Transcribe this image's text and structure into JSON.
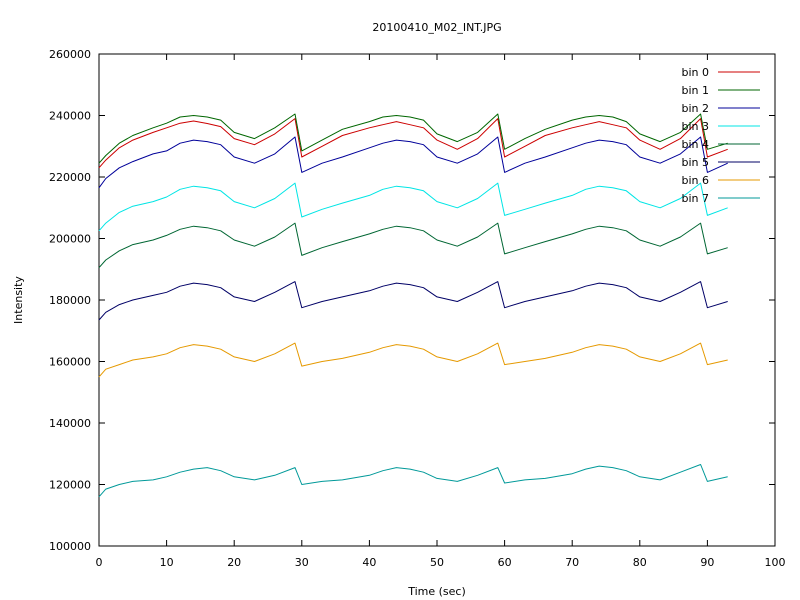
{
  "chart_data": {
    "type": "line",
    "title": "20100410_M02_INT.JPG",
    "xlabel": "Time (sec)",
    "ylabel": "Intensity",
    "xlim": [
      0,
      100
    ],
    "ylim": [
      100000,
      260000
    ],
    "xticks": [
      0,
      10,
      20,
      30,
      40,
      50,
      60,
      70,
      80,
      90,
      100
    ],
    "yticks": [
      100000,
      120000,
      140000,
      160000,
      180000,
      200000,
      220000,
      240000,
      260000
    ],
    "grid": false,
    "legend_position": "top-right",
    "x": [
      0,
      1,
      3,
      5,
      8,
      10,
      12,
      14,
      16,
      18,
      20,
      23,
      26,
      29,
      30,
      33,
      36,
      40,
      42,
      44,
      46,
      48,
      50,
      53,
      56,
      59,
      60,
      63,
      66,
      70,
      72,
      74,
      76,
      78,
      80,
      83,
      86,
      89,
      90,
      93
    ],
    "series": [
      {
        "name": "bin 0",
        "color": "#cc0000",
        "values": [
          223000,
          225500,
          229500,
          232000,
          234500,
          236000,
          237500,
          238200,
          237400,
          236400,
          232500,
          230500,
          234000,
          239000,
          226500,
          230000,
          233500,
          236000,
          237000,
          238000,
          237000,
          236000,
          232000,
          229000,
          232500,
          239000,
          226500,
          230000,
          233500,
          236000,
          237000,
          238000,
          237000,
          236000,
          232000,
          229000,
          232500,
          239000,
          226500,
          229000
        ]
      },
      {
        "name": "bin 1",
        "color": "#006600",
        "values": [
          224500,
          227000,
          231000,
          233500,
          236000,
          237500,
          239500,
          240000,
          239500,
          238500,
          234500,
          232500,
          236000,
          240500,
          228500,
          232000,
          235500,
          238000,
          239500,
          240000,
          239500,
          238500,
          234000,
          231500,
          234500,
          240500,
          229000,
          232500,
          235500,
          238500,
          239500,
          240000,
          239500,
          238000,
          234000,
          231500,
          234500,
          240500,
          229000,
          231000
        ]
      },
      {
        "name": "bin 2",
        "color": "#000099",
        "values": [
          216500,
          219500,
          223000,
          225000,
          227500,
          228500,
          231000,
          232000,
          231500,
          230500,
          226500,
          224500,
          227500,
          233000,
          221500,
          224500,
          226500,
          229500,
          231000,
          232000,
          231500,
          230500,
          226500,
          224500,
          227500,
          233000,
          221500,
          224500,
          226500,
          229500,
          231000,
          232000,
          231500,
          230500,
          226500,
          224500,
          227500,
          233000,
          221500,
          224500
        ]
      },
      {
        "name": "bin 3",
        "color": "#00e5e5",
        "values": [
          202500,
          205000,
          208500,
          210500,
          212000,
          213500,
          216000,
          217000,
          216500,
          215500,
          212000,
          210000,
          213000,
          218000,
          207000,
          209500,
          211500,
          214000,
          216000,
          217000,
          216500,
          215500,
          212000,
          210000,
          213000,
          218000,
          207500,
          209500,
          211500,
          214000,
          216000,
          217000,
          216500,
          215500,
          212000,
          210000,
          213000,
          218000,
          207500,
          210000
        ]
      },
      {
        "name": "bin 4",
        "color": "#006633",
        "values": [
          190500,
          193000,
          196000,
          198000,
          199500,
          201000,
          203000,
          204000,
          203500,
          202500,
          199500,
          197500,
          200500,
          205000,
          194500,
          197000,
          199000,
          201500,
          203000,
          204000,
          203500,
          202500,
          199500,
          197500,
          200500,
          205000,
          195000,
          197000,
          199000,
          201500,
          203000,
          204000,
          203500,
          202500,
          199500,
          197500,
          200500,
          205000,
          195000,
          197000
        ]
      },
      {
        "name": "bin 5",
        "color": "#000066",
        "values": [
          173500,
          176000,
          178500,
          180000,
          181500,
          182500,
          184500,
          185500,
          185000,
          184000,
          181000,
          179500,
          182500,
          186000,
          177500,
          179500,
          181000,
          183000,
          184500,
          185500,
          185000,
          184000,
          181000,
          179500,
          182500,
          186000,
          177500,
          179500,
          181000,
          183000,
          184500,
          185500,
          185000,
          184000,
          181000,
          179500,
          182500,
          186000,
          177500,
          179500
        ]
      },
      {
        "name": "bin 6",
        "color": "#e59900",
        "values": [
          155000,
          157500,
          159000,
          160500,
          161500,
          162500,
          164500,
          165500,
          165000,
          164000,
          161500,
          160000,
          162500,
          166000,
          158500,
          160000,
          161000,
          163000,
          164500,
          165500,
          165000,
          164000,
          161500,
          160000,
          162500,
          166000,
          159000,
          160000,
          161000,
          163000,
          164500,
          165500,
          165000,
          164000,
          161500,
          160000,
          162500,
          166000,
          159000,
          160500
        ]
      },
      {
        "name": "bin 7",
        "color": "#009999",
        "values": [
          116000,
          118500,
          120000,
          121000,
          121500,
          122500,
          124000,
          125000,
          125500,
          124500,
          122500,
          121500,
          123000,
          125500,
          120000,
          121000,
          121500,
          123000,
          124500,
          125500,
          125000,
          124000,
          122000,
          121000,
          123000,
          125500,
          120500,
          121500,
          122000,
          123500,
          125000,
          126000,
          125500,
          124500,
          122500,
          121500,
          124000,
          126500,
          121000,
          122500
        ]
      }
    ]
  }
}
